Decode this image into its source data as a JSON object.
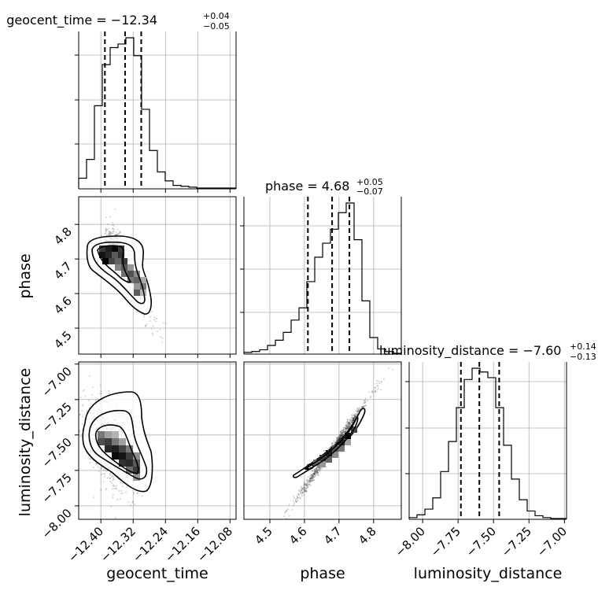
{
  "chart_data": {
    "type": "corner",
    "parameters": [
      "geocent_time",
      "phase",
      "luminosity_distance"
    ],
    "grid": true,
    "titles": [
      {
        "name": "geocent_time",
        "median": "−12.34",
        "plus": "+0.04",
        "minus": "−0.05"
      },
      {
        "name": "phase",
        "median": "4.68",
        "plus": "+0.05",
        "minus": "−0.07"
      },
      {
        "name": "luminosity_distance",
        "median": "−7.60",
        "plus": "+0.14",
        "minus": "−0.13"
      }
    ],
    "quantiles": {
      "geocent_time": [
        -12.39,
        -12.34,
        -12.3
      ],
      "phase": [
        4.61,
        4.68,
        4.73
      ],
      "luminosity_distance": [
        -7.73,
        -7.6,
        -7.46
      ]
    },
    "ranges": {
      "geocent_time": [
        -12.455,
        -12.065
      ],
      "phase": [
        4.425,
        4.88
      ],
      "luminosity_distance": [
        -8.095,
        -6.985
      ]
    },
    "ticks": {
      "geocent_time": {
        "values": [
          -12.4,
          -12.32,
          -12.24,
          -12.16,
          -12.08
        ],
        "labels": [
          "−12.40",
          "−12.32",
          "−12.24",
          "−12.16",
          "−12.08"
        ]
      },
      "phase": {
        "values": [
          4.5,
          4.6,
          4.7,
          4.8
        ],
        "labels": [
          "4.5",
          "4.6",
          "4.7",
          "4.8"
        ]
      },
      "luminosity_distance": {
        "values": [
          -8.0,
          -7.75,
          -7.5,
          -7.25,
          -7.0
        ],
        "labels": [
          "−8.00",
          "−7.75",
          "−7.50",
          "−7.25",
          "−7.00"
        ]
      }
    },
    "histograms": {
      "geocent_time": {
        "edges": [
          -12.455,
          -12.4355,
          -12.416,
          -12.3965,
          -12.377,
          -12.3575,
          -12.338,
          -12.3185,
          -12.299,
          -12.2795,
          -12.26,
          -12.2405,
          -12.221,
          -12.2015,
          -12.182,
          -12.1625,
          -12.143,
          -12.1235,
          -12.104,
          -12.0845,
          -12.065
        ],
        "counts": [
          11,
          32,
          92,
          138,
          157,
          161,
          168,
          148,
          88,
          42,
          18,
          8,
          3,
          2,
          1,
          0,
          0,
          0,
          0,
          0
        ]
      },
      "phase": {
        "edges": [
          4.425,
          4.44775,
          4.4705,
          4.49325,
          4.516,
          4.53875,
          4.5615,
          4.58425,
          4.607,
          4.62975,
          4.6525,
          4.67525,
          4.698,
          4.72075,
          4.7435,
          4.76625,
          4.789,
          4.81175,
          4.8345,
          4.85725,
          4.88
        ],
        "counts": [
          1,
          2,
          4,
          9,
          15,
          24,
          38,
          52,
          82,
          110,
          126,
          142,
          161,
          172,
          130,
          60,
          18,
          5,
          2,
          0
        ]
      },
      "luminosity_distance": {
        "edges": [
          -8.095,
          -8.0395,
          -7.984,
          -7.9285,
          -7.873,
          -7.8175,
          -7.762,
          -7.7065,
          -7.651,
          -7.5955,
          -7.54,
          -7.4845,
          -7.429,
          -7.3735,
          -7.318,
          -7.2625,
          -7.207,
          -7.1515,
          -7.096,
          -7.0405,
          -6.985
        ],
        "counts": [
          1,
          4,
          10,
          22,
          50,
          82,
          118,
          148,
          160,
          156,
          150,
          118,
          78,
          42,
          20,
          8,
          3,
          1,
          0,
          0
        ]
      }
    },
    "joint_mode": [
      {
        "x": "geocent_time",
        "y": "phase",
        "center": [
          -12.355,
          4.695
        ],
        "note": "banana-shaped: high phase at low time, tail to lower phase at later time"
      },
      {
        "x": "geocent_time",
        "y": "luminosity_distance",
        "center": [
          -12.355,
          -7.62
        ]
      },
      {
        "x": "phase",
        "y": "luminosity_distance",
        "correlation": "strong positive, narrow ridge"
      }
    ]
  }
}
